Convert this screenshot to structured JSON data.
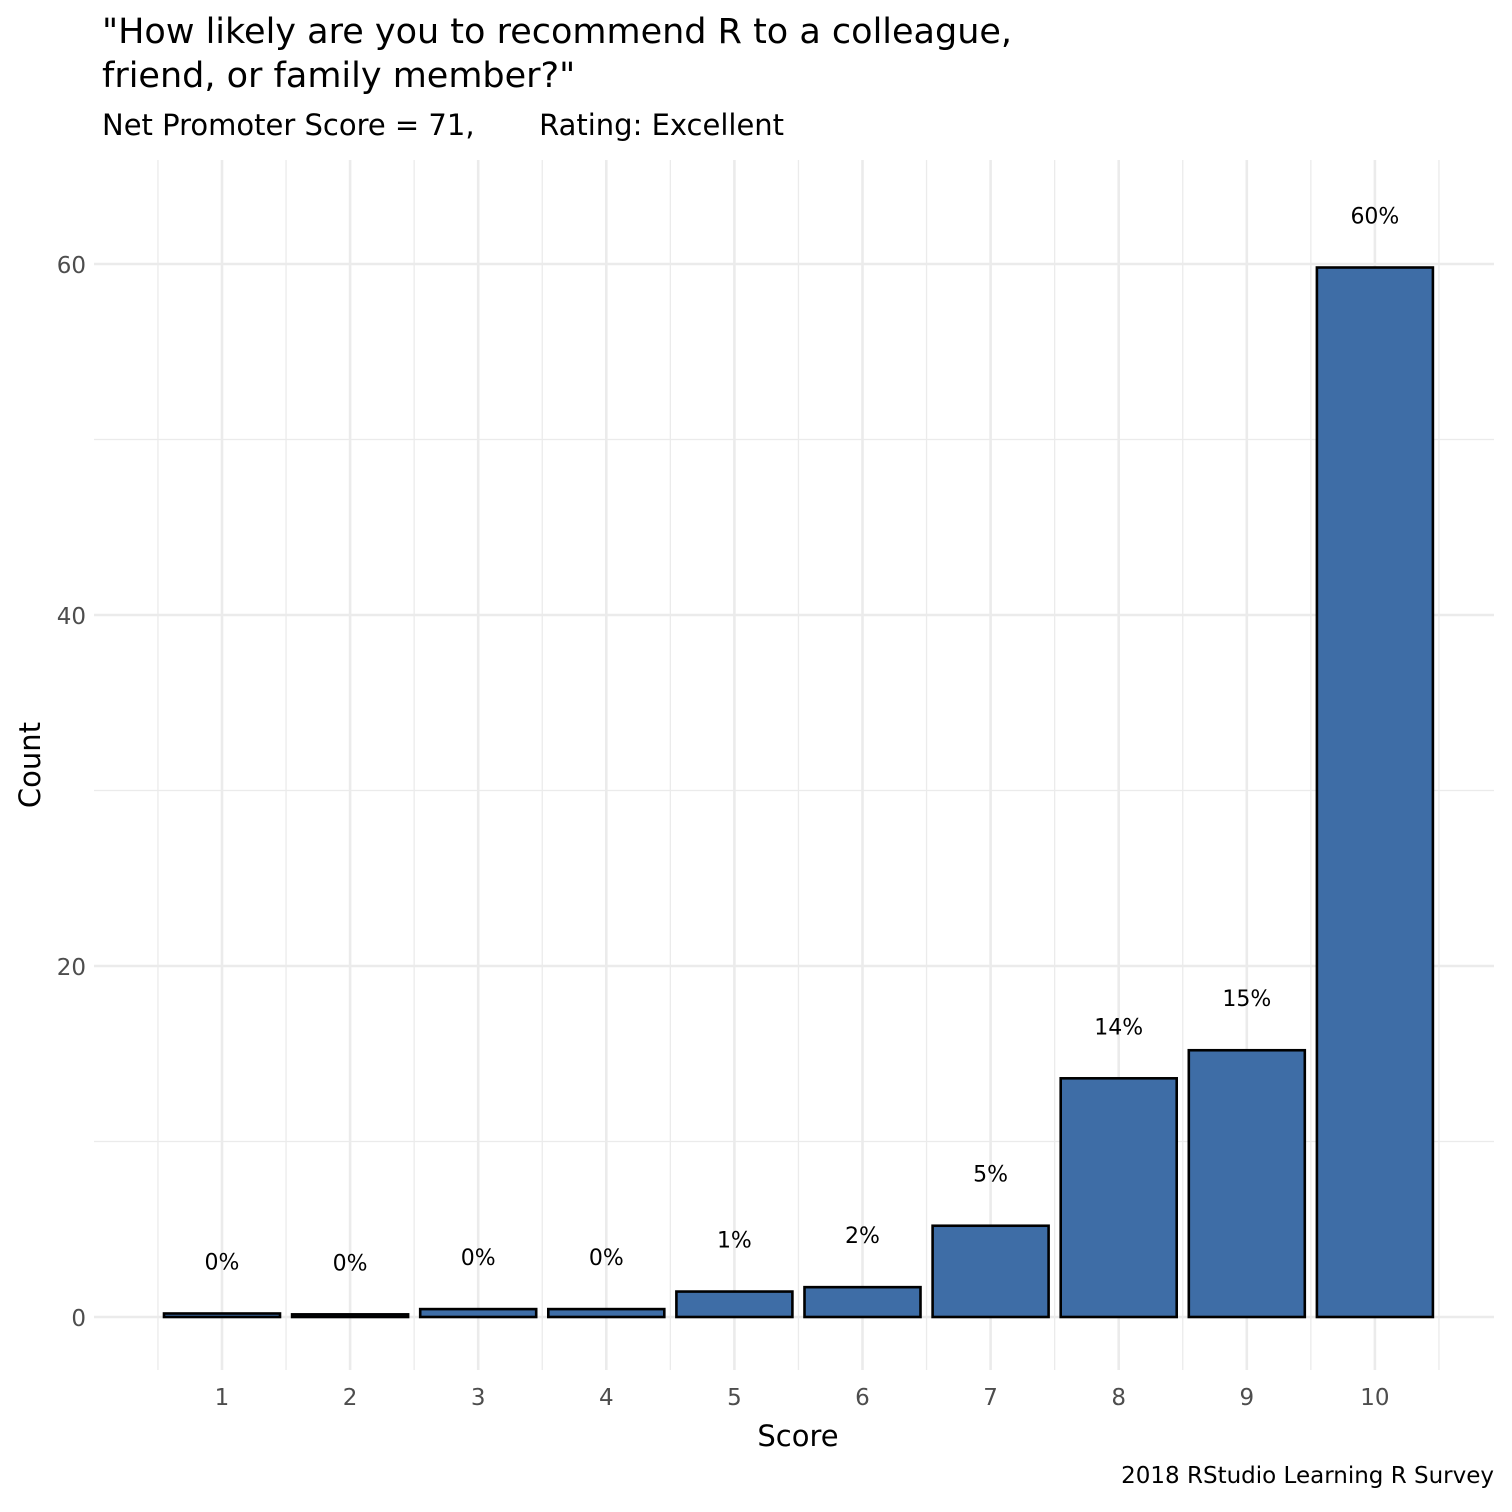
{
  "chart_data": {
    "type": "bar",
    "title": "\"How likely are you to recommend R to a colleague,\nfriend, or family member?\"",
    "subtitle": "Net Promoter Score = 71,       Rating: Excellent",
    "caption": "2018 RStudio Learning R Survey",
    "xlabel": "Score",
    "ylabel": "Count",
    "categories": [
      "1",
      "2",
      "3",
      "4",
      "5",
      "6",
      "7",
      "8",
      "9",
      "10"
    ],
    "values": [
      0.2,
      0.15,
      0.45,
      0.45,
      1.45,
      1.7,
      5.2,
      13.6,
      15.2,
      59.8
    ],
    "labels": [
      "0%",
      "0%",
      "0%",
      "0%",
      "1%",
      "2%",
      "5%",
      "14%",
      "15%",
      "60%"
    ],
    "ylim": [
      -2.5,
      65
    ],
    "yticks": [
      0,
      20,
      40,
      60
    ],
    "grid": true,
    "legend": "none",
    "colors": {
      "bar_fill": "#3e6da6",
      "bar_stroke": "#000000",
      "grid": "#ebebeb",
      "tick_label": "#4d4d4d",
      "text": "#000000"
    }
  }
}
